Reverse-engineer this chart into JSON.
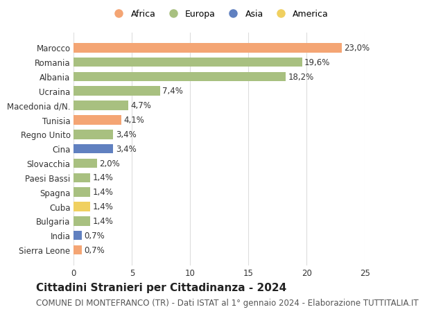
{
  "countries": [
    "Marocco",
    "Romania",
    "Albania",
    "Ucraina",
    "Macedonia d/N.",
    "Tunisia",
    "Regno Unito",
    "Cina",
    "Slovacchia",
    "Paesi Bassi",
    "Spagna",
    "Cuba",
    "Bulgaria",
    "India",
    "Sierra Leone"
  ],
  "values": [
    23.0,
    19.6,
    18.2,
    7.4,
    4.7,
    4.1,
    3.4,
    3.4,
    2.0,
    1.4,
    1.4,
    1.4,
    1.4,
    0.7,
    0.7
  ],
  "labels": [
    "23,0%",
    "19,6%",
    "18,2%",
    "7,4%",
    "4,7%",
    "4,1%",
    "3,4%",
    "3,4%",
    "2,0%",
    "1,4%",
    "1,4%",
    "1,4%",
    "1,4%",
    "0,7%",
    "0,7%"
  ],
  "continents": [
    "Africa",
    "Europa",
    "Europa",
    "Europa",
    "Europa",
    "Africa",
    "Europa",
    "Asia",
    "Europa",
    "Europa",
    "Europa",
    "America",
    "Europa",
    "Asia",
    "Africa"
  ],
  "continent_colors": {
    "Africa": "#F4A574",
    "Europa": "#A8C080",
    "Asia": "#6080C0",
    "America": "#F0D060"
  },
  "legend_order": [
    "Africa",
    "Europa",
    "Asia",
    "America"
  ],
  "title": "Cittadini Stranieri per Cittadinanza - 2024",
  "subtitle": "COMUNE DI MONTEFRANCO (TR) - Dati ISTAT al 1° gennaio 2024 - Elaborazione TUTTITALIA.IT",
  "xlim": [
    0,
    25
  ],
  "xticks": [
    0,
    5,
    10,
    15,
    20,
    25
  ],
  "bg_color": "#ffffff",
  "grid_color": "#dddddd",
  "bar_height": 0.65,
  "title_fontsize": 11,
  "subtitle_fontsize": 8.5,
  "label_fontsize": 8.5,
  "tick_fontsize": 8.5,
  "legend_fontsize": 9
}
